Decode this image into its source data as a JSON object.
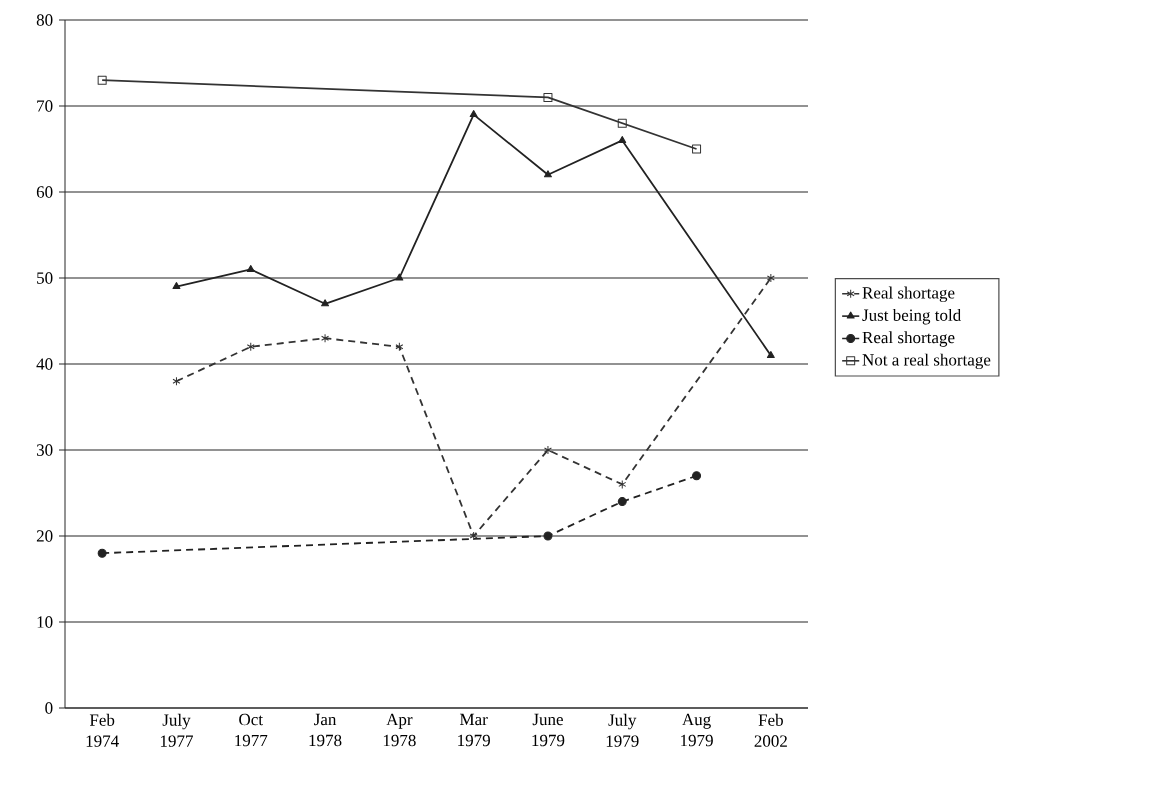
{
  "chart_data": {
    "type": "line",
    "categories": [
      "Feb 1974",
      "July 1977",
      "Oct 1977",
      "Jan 1978",
      "Apr 1978",
      "Mar 1979",
      "June 1979",
      "July 1979",
      "Aug 1979",
      "Feb 2002"
    ],
    "series": [
      {
        "name": "Real shortage",
        "color": "#333333",
        "marker": "cross",
        "line_style": "dashed",
        "values": [
          null,
          38,
          42,
          43,
          42,
          20,
          30,
          26,
          null,
          50
        ]
      },
      {
        "name": "Just being told",
        "color": "#222222",
        "marker": "triangle",
        "line_style": "solid",
        "values": [
          null,
          49,
          51,
          47,
          50,
          69,
          62,
          66,
          null,
          41
        ]
      },
      {
        "name": "Real shortage",
        "color": "#222222",
        "marker": "circle",
        "line_style": "dashed",
        "values": [
          18,
          null,
          null,
          null,
          null,
          null,
          20,
          24,
          27,
          null
        ]
      },
      {
        "name": "Not a real shortage",
        "color": "#333333",
        "marker": "square",
        "line_style": "solid",
        "values": [
          73,
          null,
          null,
          null,
          null,
          null,
          71,
          68,
          65,
          null
        ]
      }
    ],
    "ylim": [
      0,
      80
    ],
    "yticks": [
      0,
      10,
      20,
      30,
      40,
      50,
      60,
      70,
      80
    ],
    "grid": "y",
    "legend": "right"
  }
}
